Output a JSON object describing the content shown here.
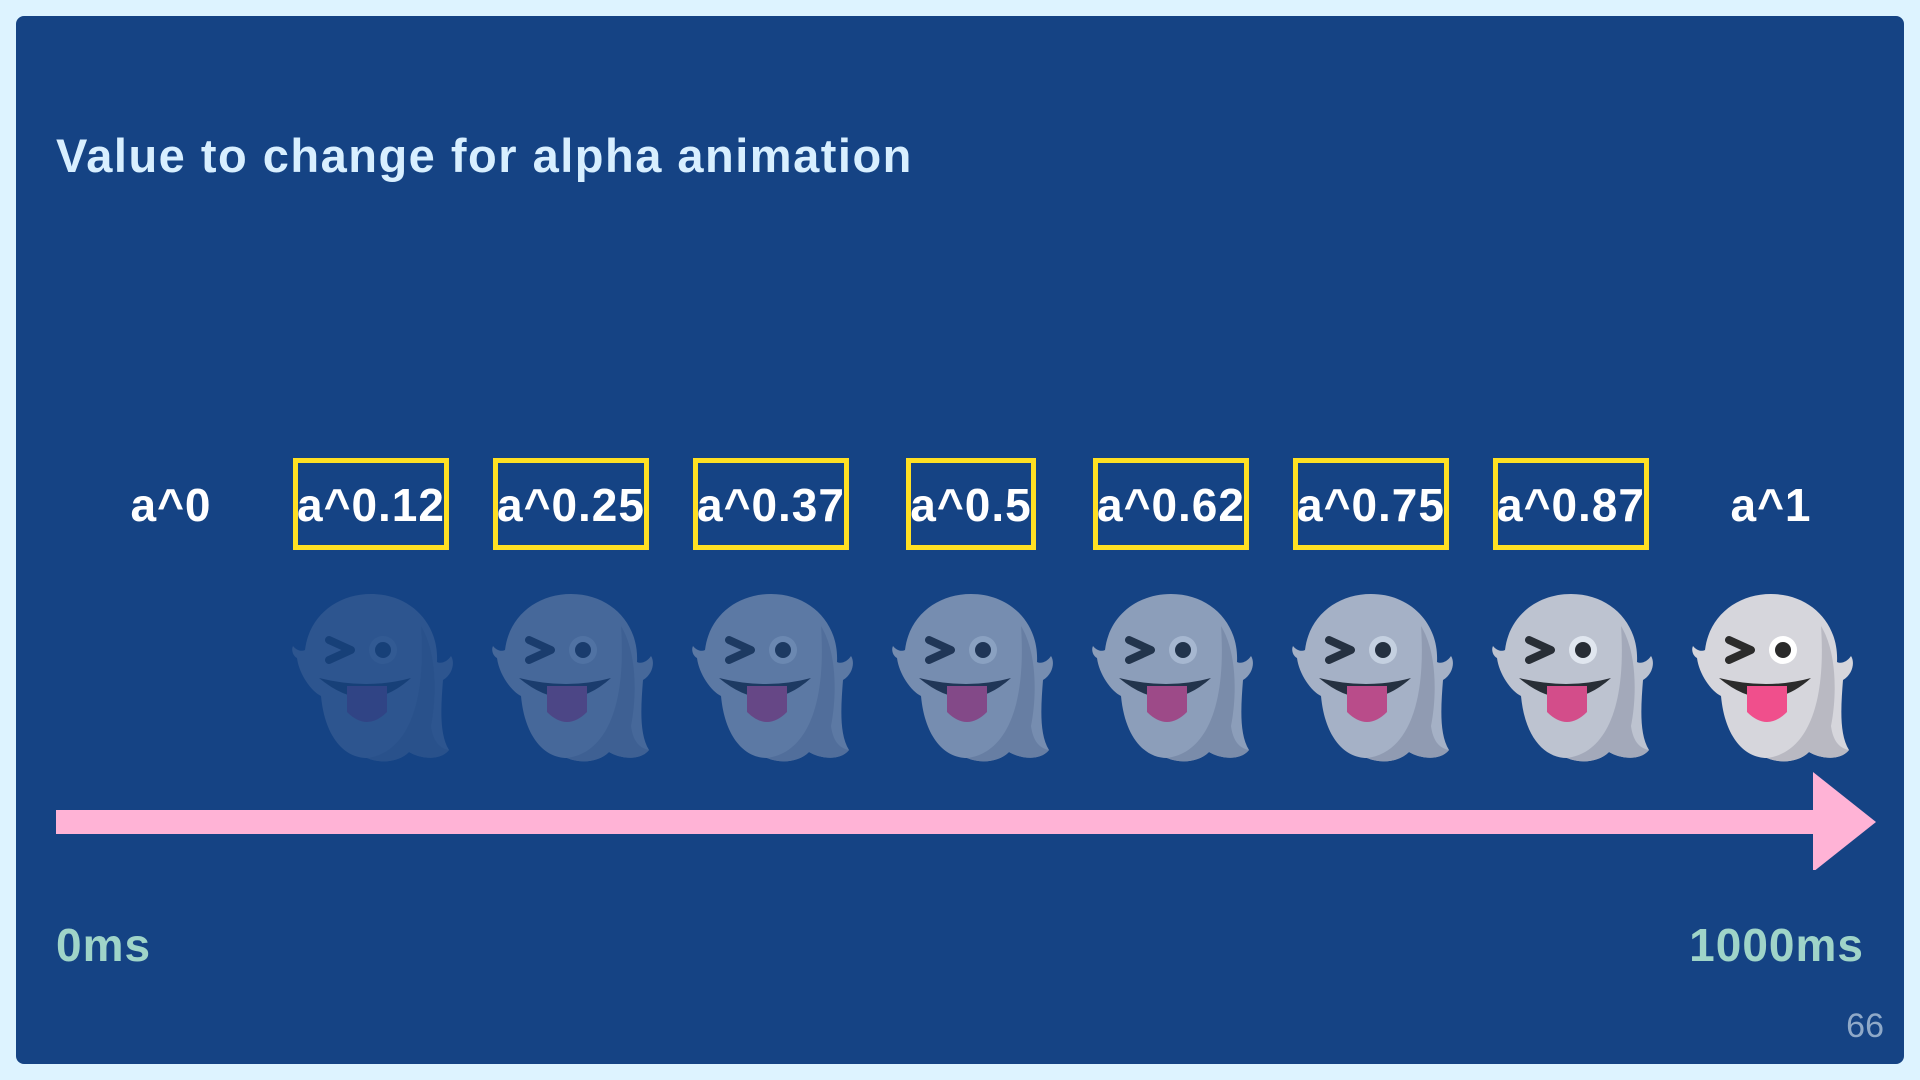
{
  "title": "Value to change for alpha animation",
  "steps": [
    {
      "label": "a^0",
      "alpha": 0,
      "highlighted": false
    },
    {
      "label": "a^0.12",
      "alpha": 0.12,
      "highlighted": true
    },
    {
      "label": "a^0.25",
      "alpha": 0.25,
      "highlighted": true
    },
    {
      "label": "a^0.37",
      "alpha": 0.37,
      "highlighted": true
    },
    {
      "label": "a^0.5",
      "alpha": 0.5,
      "highlighted": true
    },
    {
      "label": "a^0.62",
      "alpha": 0.62,
      "highlighted": true
    },
    {
      "label": "a^0.75",
      "alpha": 0.75,
      "highlighted": true
    },
    {
      "label": "a^0.87",
      "alpha": 0.87,
      "highlighted": true
    },
    {
      "label": "a^1",
      "alpha": 1,
      "highlighted": false
    }
  ],
  "timeline": {
    "start_label": "0ms",
    "end_label": "1000ms"
  },
  "page_number": "66",
  "colors": {
    "background": "#154384",
    "highlight": "#ffe023",
    "arrow": "#ffb3d6",
    "time_label": "#9fd4c8"
  },
  "icons": {
    "ghost": "winking-ghost-icon"
  }
}
